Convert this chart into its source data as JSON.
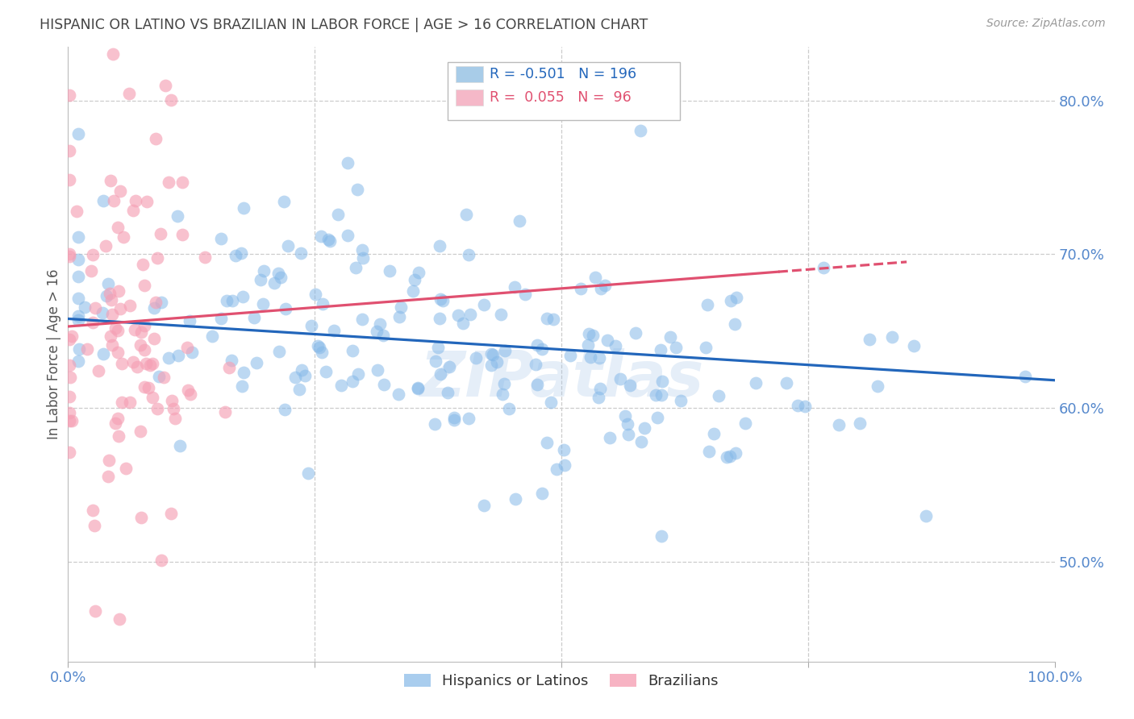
{
  "title": "HISPANIC OR LATINO VS BRAZILIAN IN LABOR FORCE | AGE > 16 CORRELATION CHART",
  "source": "Source: ZipAtlas.com",
  "ylabel": "In Labor Force | Age > 16",
  "ytick_labels": [
    "50.0%",
    "60.0%",
    "70.0%",
    "80.0%"
  ],
  "ytick_values": [
    0.5,
    0.6,
    0.7,
    0.8
  ],
  "xlim": [
    0.0,
    1.0
  ],
  "ylim": [
    0.435,
    0.835
  ],
  "blue_R": -0.501,
  "blue_N": 196,
  "pink_R": 0.055,
  "pink_N": 96,
  "blue_line_x0": 0.0,
  "blue_line_y0": 0.658,
  "blue_line_x1": 1.0,
  "blue_line_y1": 0.618,
  "pink_line_x0": 0.0,
  "pink_line_y0": 0.653,
  "pink_line_x1": 0.85,
  "pink_line_y1": 0.695,
  "watermark": "ZIPatlas",
  "background_color": "#ffffff",
  "grid_color": "#cccccc",
  "blue_color": "#85b8e8",
  "pink_color": "#f5a0b5",
  "title_color": "#444444",
  "axis_label_color": "#5588cc",
  "seed": 12345
}
